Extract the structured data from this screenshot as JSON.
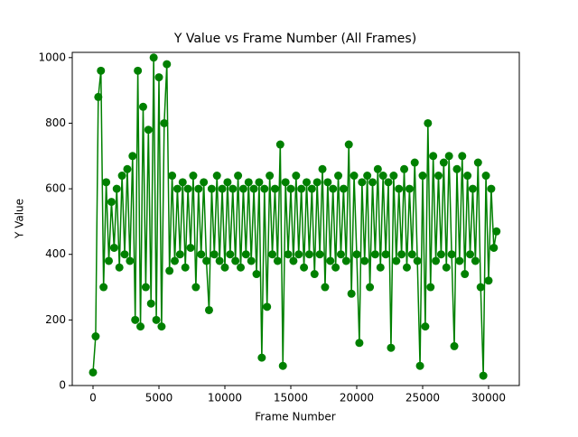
{
  "chart_data": {
    "type": "line",
    "title": "Y Value vs Frame Number (All Frames)",
    "x_label": "Frame Number",
    "y_label": "Y Value",
    "color": "#008000",
    "markers": true,
    "x": [
      0,
      200,
      400,
      600,
      800,
      1000,
      1200,
      1400,
      1600,
      1800,
      2000,
      2200,
      2400,
      2600,
      2800,
      3000,
      3200,
      3400,
      3600,
      3800,
      4000,
      4200,
      4400,
      4600,
      4800,
      5000,
      5200,
      5400,
      5600,
      5800,
      6000,
      6200,
      6400,
      6600,
      6800,
      7000,
      7200,
      7400,
      7600,
      7800,
      8000,
      8200,
      8400,
      8600,
      8800,
      9000,
      9200,
      9400,
      9600,
      9800,
      10000,
      10200,
      10400,
      10600,
      10800,
      11000,
      11200,
      11400,
      11600,
      11800,
      12000,
      12200,
      12400,
      12600,
      12800,
      13000,
      13200,
      13400,
      13600,
      13800,
      14000,
      14200,
      14400,
      14600,
      14800,
      15000,
      15200,
      15400,
      15600,
      15800,
      16000,
      16200,
      16400,
      16600,
      16800,
      17000,
      17200,
      17400,
      17600,
      17800,
      18000,
      18200,
      18400,
      18600,
      18800,
      19000,
      19200,
      19400,
      19600,
      19800,
      20000,
      20200,
      20400,
      20600,
      20800,
      21000,
      21200,
      21400,
      21600,
      21800,
      22000,
      22200,
      22400,
      22600,
      22800,
      23000,
      23200,
      23400,
      23600,
      23800,
      24000,
      24200,
      24400,
      24600,
      24800,
      25000,
      25200,
      25400,
      25600,
      25800,
      26000,
      26200,
      26400,
      26600,
      26800,
      27000,
      27200,
      27400,
      27600,
      27800,
      28000,
      28200,
      28400,
      28600,
      28800,
      29000,
      29200,
      29400,
      29600,
      29800,
      30000,
      30200,
      30400,
      30600
    ],
    "values": [
      40,
      150,
      880,
      960,
      300,
      620,
      380,
      560,
      420,
      600,
      360,
      640,
      400,
      660,
      380,
      700,
      200,
      960,
      180,
      850,
      300,
      780,
      250,
      1000,
      200,
      940,
      180,
      800,
      980,
      350,
      640,
      380,
      600,
      400,
      620,
      360,
      600,
      420,
      640,
      300,
      600,
      400,
      620,
      380,
      230,
      600,
      400,
      640,
      380,
      600,
      360,
      620,
      400,
      600,
      380,
      640,
      360,
      600,
      400,
      620,
      380,
      600,
      340,
      620,
      85,
      600,
      240,
      640,
      400,
      600,
      380,
      735,
      60,
      620,
      400,
      600,
      380,
      640,
      400,
      600,
      360,
      620,
      400,
      600,
      340,
      620,
      400,
      660,
      300,
      620,
      380,
      600,
      360,
      640,
      400,
      600,
      380,
      735,
      280,
      640,
      400,
      130,
      620,
      380,
      640,
      300,
      620,
      400,
      660,
      360,
      640,
      400,
      620,
      115,
      640,
      380,
      600,
      400,
      660,
      360,
      600,
      400,
      680,
      380,
      60,
      640,
      180,
      800,
      300,
      700,
      380,
      640,
      400,
      680,
      360,
      700,
      400,
      120,
      660,
      380,
      700,
      340,
      640,
      400,
      600,
      380,
      680,
      300,
      30,
      640,
      320,
      600,
      420,
      470
    ],
    "xlim": [
      -1575,
      32330
    ],
    "ylim": [
      0,
      1016
    ],
    "xticks": [
      0,
      5000,
      10000,
      15000,
      20000,
      25000,
      30000
    ],
    "yticks": [
      0,
      200,
      400,
      600,
      800,
      1000
    ]
  }
}
